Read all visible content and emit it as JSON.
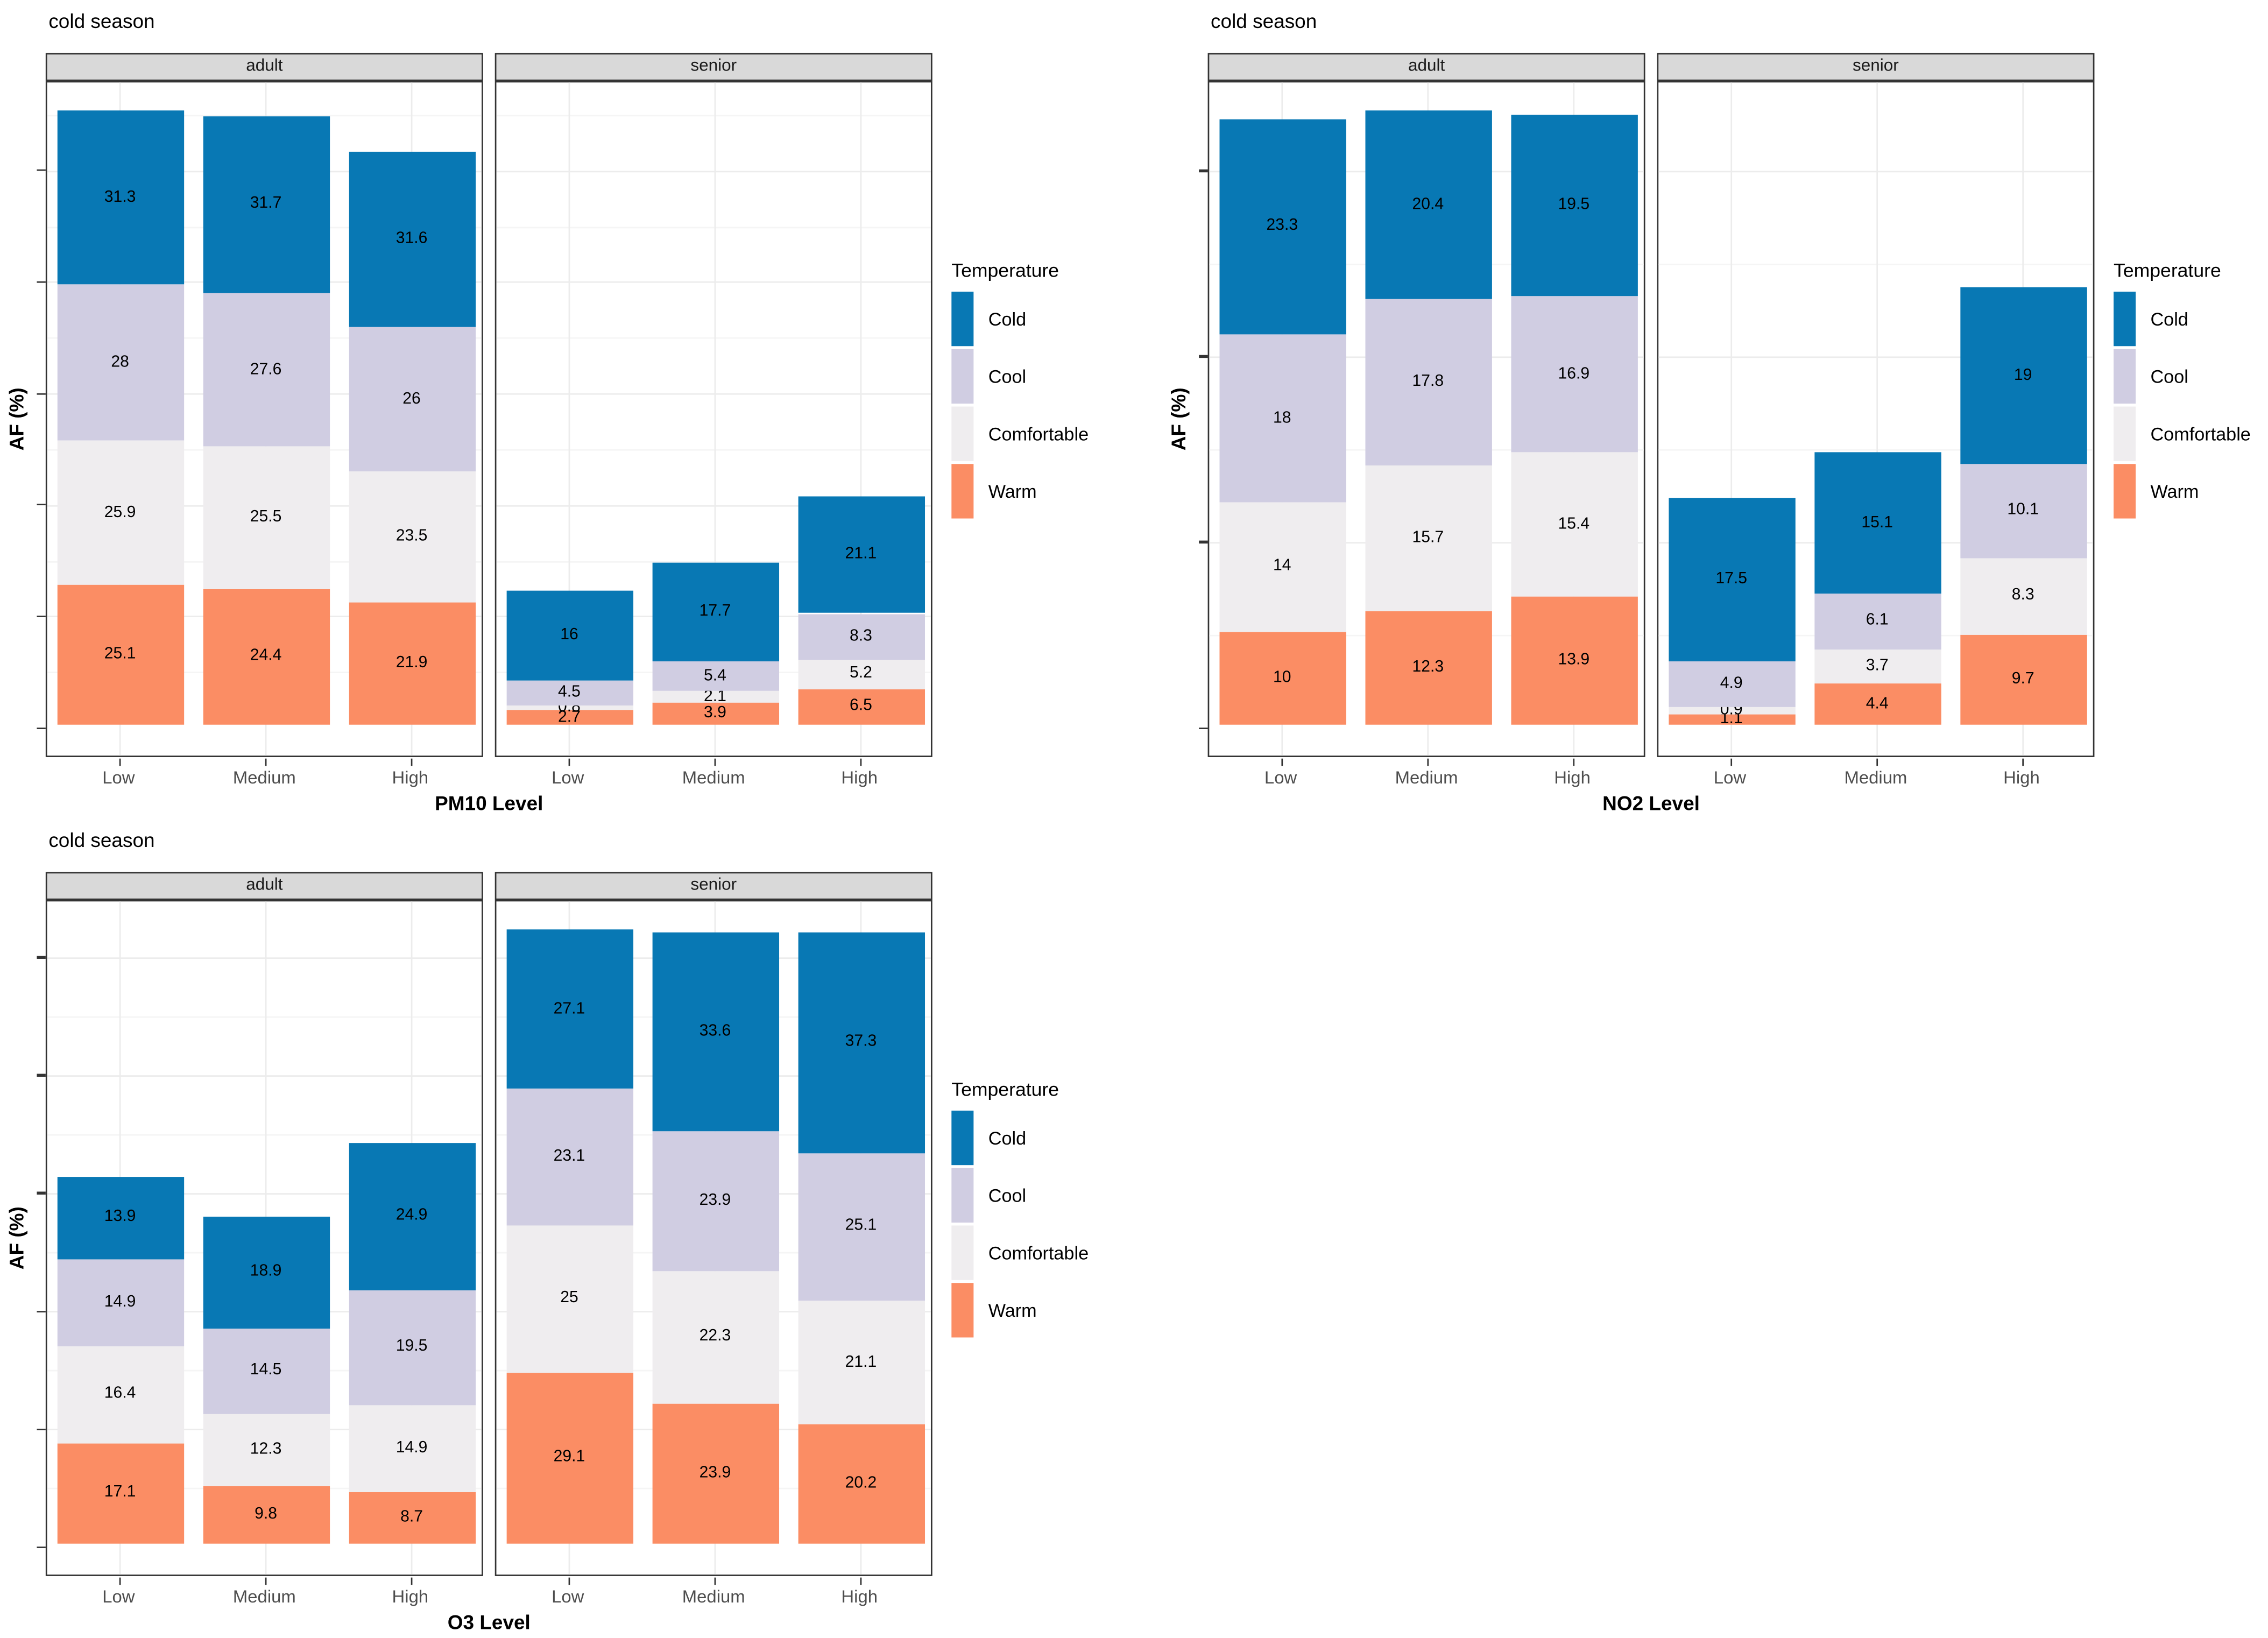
{
  "palette": {
    "cold": "#0878B4",
    "cool": "#D0CDE2",
    "comfortable": "#EFEDEF",
    "warm": "#FB8D64",
    "strip_bg": "#D9D9D9",
    "panel_border": "#333333",
    "grid_major": "#ECECEC",
    "grid_minor": "#F5F5F5",
    "tick_color": "#333333",
    "axis_text": "#4D4D4D",
    "value_text": "#000000"
  },
  "legend": {
    "title": "Temperature",
    "items": [
      {
        "label": "Cold",
        "key": "cold"
      },
      {
        "label": "Cool",
        "key": "cool"
      },
      {
        "label": "Comfortable",
        "key": "comfortable"
      },
      {
        "label": "Warm",
        "key": "warm"
      }
    ]
  },
  "chart_data": [
    {
      "id": "pm10",
      "type": "bar",
      "stacked": true,
      "title": "cold season",
      "xlabel": "PM10 Level",
      "ylabel": "AF (%)",
      "categories": [
        "Low",
        "Medium",
        "High"
      ],
      "stack_order_bottom_to_top": [
        "Warm",
        "Comfortable",
        "Cool",
        "Cold"
      ],
      "y_axis": {
        "tick_marks_visible": true,
        "tick_labels_visible": false,
        "tick_step": 20
      },
      "facets": [
        {
          "label": "adult",
          "series": [
            {
              "name": "Cold",
              "values": [
                31.3,
                31.7,
                31.6
              ]
            },
            {
              "name": "Cool",
              "values": [
                28,
                27.6,
                26
              ]
            },
            {
              "name": "Comfortable",
              "values": [
                25.9,
                25.5,
                23.5
              ]
            },
            {
              "name": "Warm",
              "values": [
                25.1,
                24.4,
                21.9
              ]
            }
          ]
        },
        {
          "label": "senior",
          "series": [
            {
              "name": "Cold",
              "values": [
                16,
                17.7,
                21.1
              ]
            },
            {
              "name": "Cool",
              "values": [
                4.5,
                5.4,
                8.3
              ]
            },
            {
              "name": "Comfortable",
              "values": [
                0.8,
                2.1,
                5.2
              ]
            },
            {
              "name": "Warm",
              "values": [
                2.7,
                3.9,
                6.5
              ]
            }
          ]
        }
      ]
    },
    {
      "id": "no2",
      "type": "bar",
      "stacked": true,
      "title": "cold season",
      "xlabel": "NO2 Level",
      "ylabel": "AF (%)",
      "categories": [
        "Low",
        "Medium",
        "High"
      ],
      "stack_order_bottom_to_top": [
        "Warm",
        "Comfortable",
        "Cool",
        "Cold"
      ],
      "y_axis": {
        "tick_marks_visible": true,
        "tick_labels_visible": false,
        "tick_step": 20
      },
      "facets": [
        {
          "label": "adult",
          "series": [
            {
              "name": "Cold",
              "values": [
                23.3,
                20.4,
                19.5
              ]
            },
            {
              "name": "Cool",
              "values": [
                18,
                17.8,
                16.9
              ]
            },
            {
              "name": "Comfortable",
              "values": [
                14,
                15.7,
                15.4
              ]
            },
            {
              "name": "Warm",
              "values": [
                10,
                12.3,
                13.9
              ]
            }
          ]
        },
        {
          "label": "senior",
          "series": [
            {
              "name": "Cold",
              "values": [
                17.5,
                15.1,
                19
              ]
            },
            {
              "name": "Cool",
              "values": [
                4.9,
                6.1,
                10.1
              ]
            },
            {
              "name": "Comfortable",
              "values": [
                0.9,
                3.7,
                8.3
              ]
            },
            {
              "name": "Warm",
              "values": [
                1.1,
                4.4,
                9.7
              ]
            }
          ]
        }
      ]
    },
    {
      "id": "o3",
      "type": "bar",
      "stacked": true,
      "title": "cold season",
      "xlabel": "O3 Level",
      "ylabel": "AF (%)",
      "categories": [
        "Low",
        "Medium",
        "High"
      ],
      "stack_order_bottom_to_top": [
        "Warm",
        "Comfortable",
        "Cool",
        "Cold"
      ],
      "y_axis": {
        "tick_marks_visible": true,
        "tick_labels_visible": false,
        "tick_step": 20
      },
      "facets": [
        {
          "label": "adult",
          "series": [
            {
              "name": "Cold",
              "values": [
                13.9,
                18.9,
                24.9
              ]
            },
            {
              "name": "Cool",
              "values": [
                14.9,
                14.5,
                19.5
              ]
            },
            {
              "name": "Comfortable",
              "values": [
                16.4,
                12.3,
                14.9
              ]
            },
            {
              "name": "Warm",
              "values": [
                17.1,
                9.8,
                8.7
              ]
            }
          ]
        },
        {
          "label": "senior",
          "series": [
            {
              "name": "Cold",
              "values": [
                27.1,
                33.6,
                37.3
              ]
            },
            {
              "name": "Cool",
              "values": [
                23.1,
                23.9,
                25.1
              ]
            },
            {
              "name": "Comfortable",
              "values": [
                25,
                22.3,
                21.1
              ]
            },
            {
              "name": "Warm",
              "values": [
                29.1,
                23.9,
                20.2
              ]
            }
          ]
        }
      ]
    }
  ]
}
